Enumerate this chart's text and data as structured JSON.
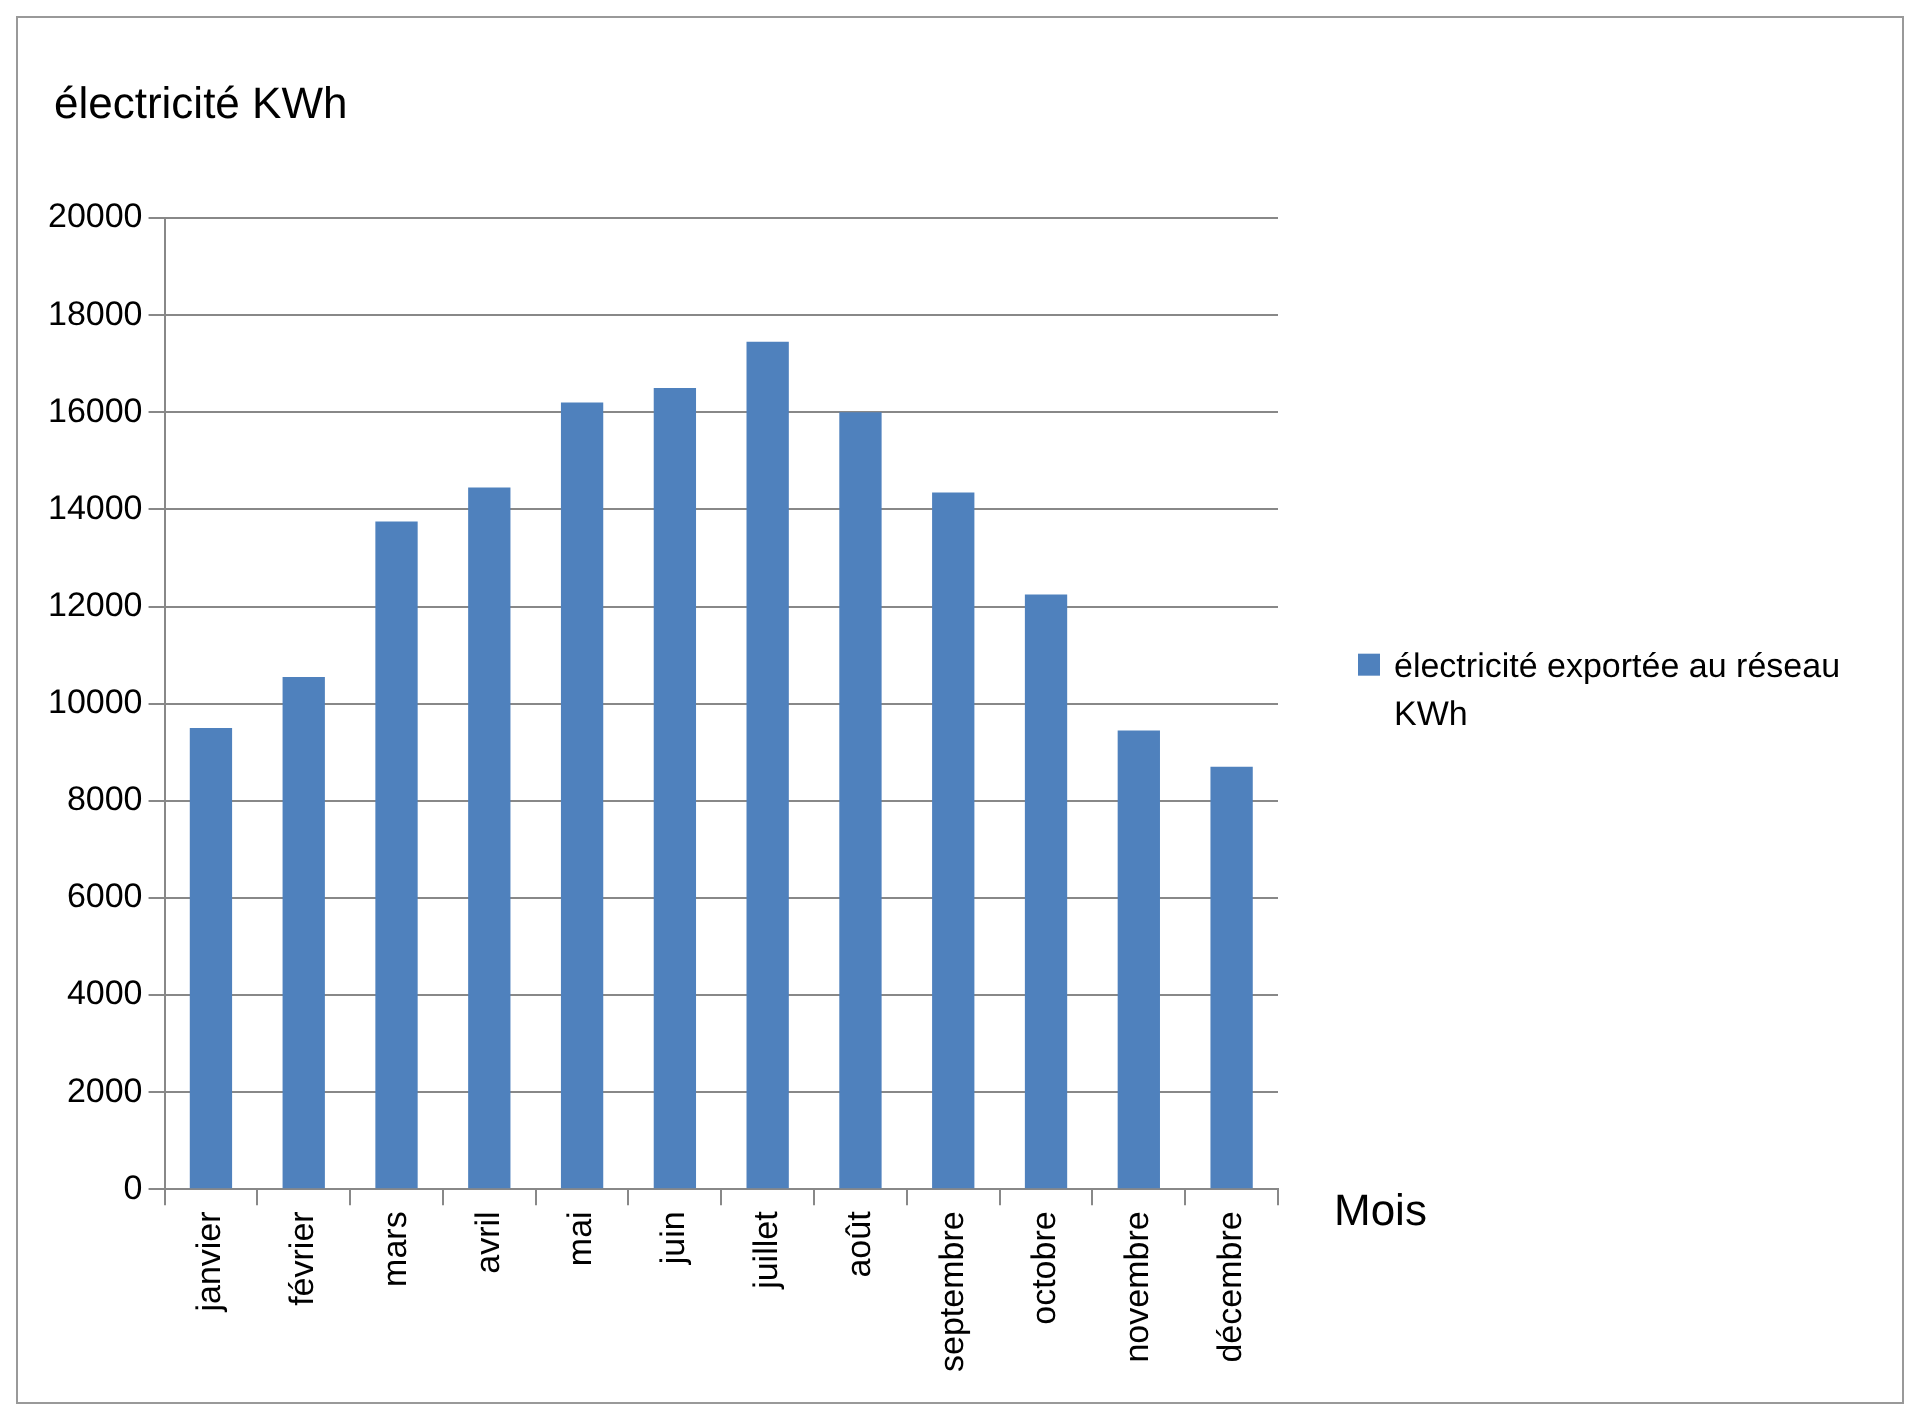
{
  "chart_data": {
    "type": "bar",
    "ylabel": "électricité KWh",
    "xlabel": "Mois",
    "categories": [
      "janvier",
      "février",
      "mars",
      "avril",
      "mai",
      "juin",
      "juillet",
      "août",
      "septembre",
      "octobre",
      "novembre",
      "décembre"
    ],
    "series": [
      {
        "name": "électricité exportée au réseau KWh",
        "color": "#4f81bd",
        "values": [
          9500,
          10550,
          13750,
          14450,
          16200,
          16500,
          17450,
          16000,
          14350,
          12250,
          9450,
          8700
        ]
      }
    ],
    "ylim": [
      0,
      20000
    ],
    "yticks": [
      0,
      2000,
      4000,
      6000,
      8000,
      10000,
      12000,
      14000,
      16000,
      18000,
      20000
    ],
    "grid": "y",
    "legend": "right"
  }
}
